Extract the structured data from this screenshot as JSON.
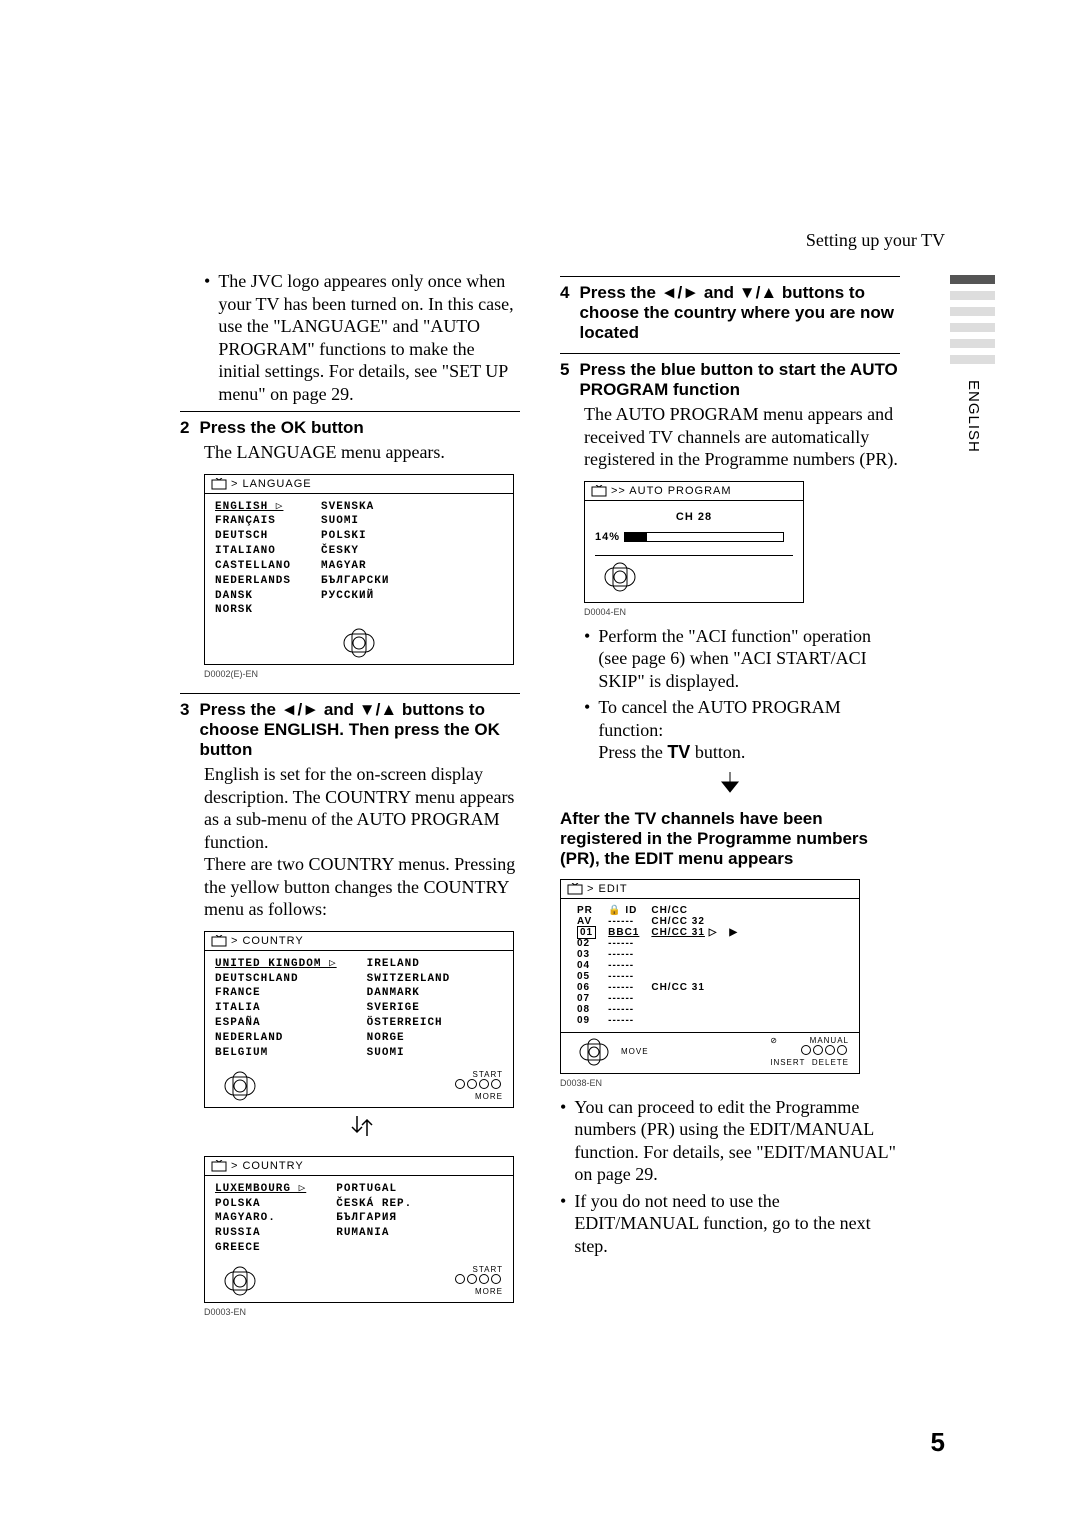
{
  "header": {
    "title": "Setting up your TV"
  },
  "side": {
    "label": "ENGLISH"
  },
  "steps": {
    "s1_bullet": "The JVC logo appeares only once when your TV has been turned on. In this case, use the \"LANGUAGE\" and \"AUTO PROGRAM\" functions to make the initial settings. For details, see \"SET UP menu\" on page 29.",
    "s2_head": "Press the ",
    "s2_head_ok": "OK",
    "s2_head_tail": " button",
    "s2_body": "The LANGUAGE menu appears.",
    "s3_head_a": "Press the ",
    "s3_head_arrows1": "◄/►",
    "s3_head_mid": " and ",
    "s3_head_arrows2": "▼/▲",
    "s3_head_b": " buttons to choose ENGLISH. Then press the ",
    "s3_head_ok": "OK",
    "s3_head_tail": " button",
    "s3_body1": "English is set for the on-screen display description. The COUNTRY menu appears as a sub-menu of the AUTO PROGRAM function.",
    "s3_body2": "There are two COUNTRY menus. Pressing the yellow button changes the COUNTRY menu as follows:",
    "s4_head_a": "Press the ",
    "s4_head_arrows1": "◄/►",
    "s4_head_mid": " and ",
    "s4_head_arrows2": "▼/▲",
    "s4_head_b": " buttons to choose the country where you are now located",
    "s5_head": "Press the blue button to start the AUTO PROGRAM function",
    "s5_body": "The AUTO PROGRAM menu appears and received TV channels are automatically registered in the Programme numbers (PR).",
    "s5_bullet1": "Perform the \"ACI function\" operation (see page 6) when \"ACI START/ACI SKIP\" is displayed.",
    "s5_bullet2a": "To cancel the AUTO PROGRAM function:",
    "s5_bullet2b_a": "Press the ",
    "s5_bullet2b_tv": "TV",
    "s5_bullet2b_b": " button.",
    "after_head": "After the TV channels have been registered in the Programme numbers (PR), the EDIT menu appears",
    "after_bullet1": "You can proceed to edit the Programme numbers (PR) using the EDIT/MANUAL function. For details, see \"EDIT/MANUAL\" on page 29.",
    "after_bullet2": "If you do not need to use the EDIT/MANUAL function, go to the next step."
  },
  "menus": {
    "language": {
      "title": "> LANGUAGE",
      "left": [
        "ENGLISH",
        "FRANÇAIS",
        "DEUTSCH",
        "ITALIANO",
        "CASTELLANO",
        "NEDERLANDS",
        "DANSK",
        "NORSK"
      ],
      "right": [
        "SVENSKA",
        "SUOMI",
        "POLSKI",
        "ČESKY",
        "MAGYAR",
        "БЪЛГАРСКИ",
        "РУССКИЙ"
      ],
      "caption": "D0002(E)-EN"
    },
    "country1": {
      "title": "> COUNTRY",
      "left": [
        "UNITED KINGDOM",
        "DEUTSCHLAND",
        "FRANCE",
        "ITALIA",
        "ESPAÑA",
        "NEDERLAND",
        "BELGIUM"
      ],
      "right": [
        "IRELAND",
        "SWITZERLAND",
        "DANMARK",
        "SVERIGE",
        "ÖSTERREICH",
        "NORGE",
        "SUOMI"
      ],
      "footer_start": "START",
      "footer_more": "MORE"
    },
    "country2": {
      "title": "> COUNTRY",
      "left": [
        "LUXEMBOURG",
        "POLSKA",
        "MAGYARO.",
        "RUSSIA",
        "GREECE"
      ],
      "right": [
        "PORTUGAL",
        "ČESKÁ REP.",
        "БЪЛГАРИЯ",
        "RUMANIA"
      ],
      "footer_start": "START",
      "footer_more": "MORE",
      "caption": "D0003-EN"
    },
    "autoprogram": {
      "title": ">> AUTO PROGRAM",
      "channel": "CH 28",
      "percent": "14%",
      "caption": "D0004-EN"
    },
    "edit": {
      "title": "> EDIT",
      "col_pr": "PR",
      "col_id": "ID",
      "col_ch": "CH/CC",
      "rows_pr": [
        "AV",
        "01",
        "02",
        "03",
        "04",
        "05",
        "06",
        "07",
        "08",
        "09"
      ],
      "rows_id": [
        "------",
        "BBC1",
        "------",
        "------",
        "------",
        "------",
        "------",
        "------",
        "------",
        "------"
      ],
      "rows_ch": [
        "CH/CC 32",
        "CH/CC 31",
        "",
        "",
        "",
        "",
        "CH/CC 31",
        "",
        "",
        ""
      ],
      "footer_move": "MOVE",
      "footer_manual": "MANUAL",
      "footer_insert": "INSERT",
      "footer_delete": "DELETE",
      "caption": "D0038-EN"
    }
  },
  "page_number": "5"
}
